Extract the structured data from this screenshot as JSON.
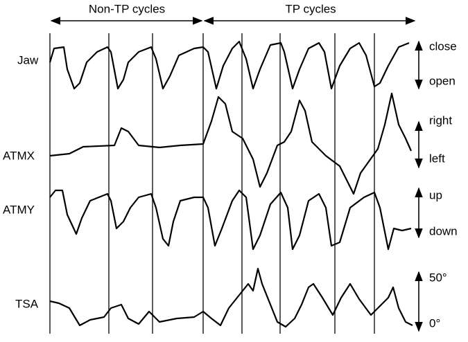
{
  "header": {
    "left": "Non-TP cycles",
    "right": "TP cycles"
  },
  "traces": [
    {
      "label": "Jaw",
      "top": "close",
      "bottom": "open"
    },
    {
      "label": "ATMX",
      "top": "right",
      "bottom": "left"
    },
    {
      "label": "ATMY",
      "top": "up",
      "bottom": "down"
    },
    {
      "label": "TSA",
      "top": "50°",
      "bottom": "0°"
    }
  ]
}
